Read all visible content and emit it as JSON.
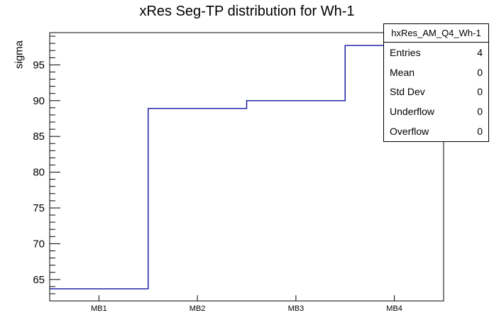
{
  "title": "xRes Seg-TP distribution for Wh-1",
  "y_axis_title": "sigma",
  "stats_box": {
    "header": "hxRes_AM_Q4_Wh-1",
    "rows": [
      {
        "label": "Entries",
        "value": "4"
      },
      {
        "label": "Mean",
        "value": "0"
      },
      {
        "label": "Std Dev",
        "value": "0"
      },
      {
        "label": "Underflow",
        "value": "0"
      },
      {
        "label": "Overflow",
        "value": "0"
      }
    ]
  },
  "chart_data": {
    "type": "line",
    "subtype": "step-histogram",
    "title": "xRes Seg-TP distribution for Wh-1",
    "categories": [
      "MB1",
      "MB2",
      "MB3",
      "MB4"
    ],
    "values": [
      63.7,
      88.9,
      90.0,
      97.7
    ],
    "xlabel": "",
    "ylabel": "sigma",
    "ylim": [
      62.0,
      99.5
    ],
    "y_major_ticks": [
      65,
      70,
      75,
      80,
      85,
      90,
      95
    ],
    "y_minor_tick_step": 1,
    "grid": false,
    "legend_position": "none",
    "line_color": "#0f0fa2",
    "frame_color": "#000000",
    "background_color": "#ffffff"
  }
}
